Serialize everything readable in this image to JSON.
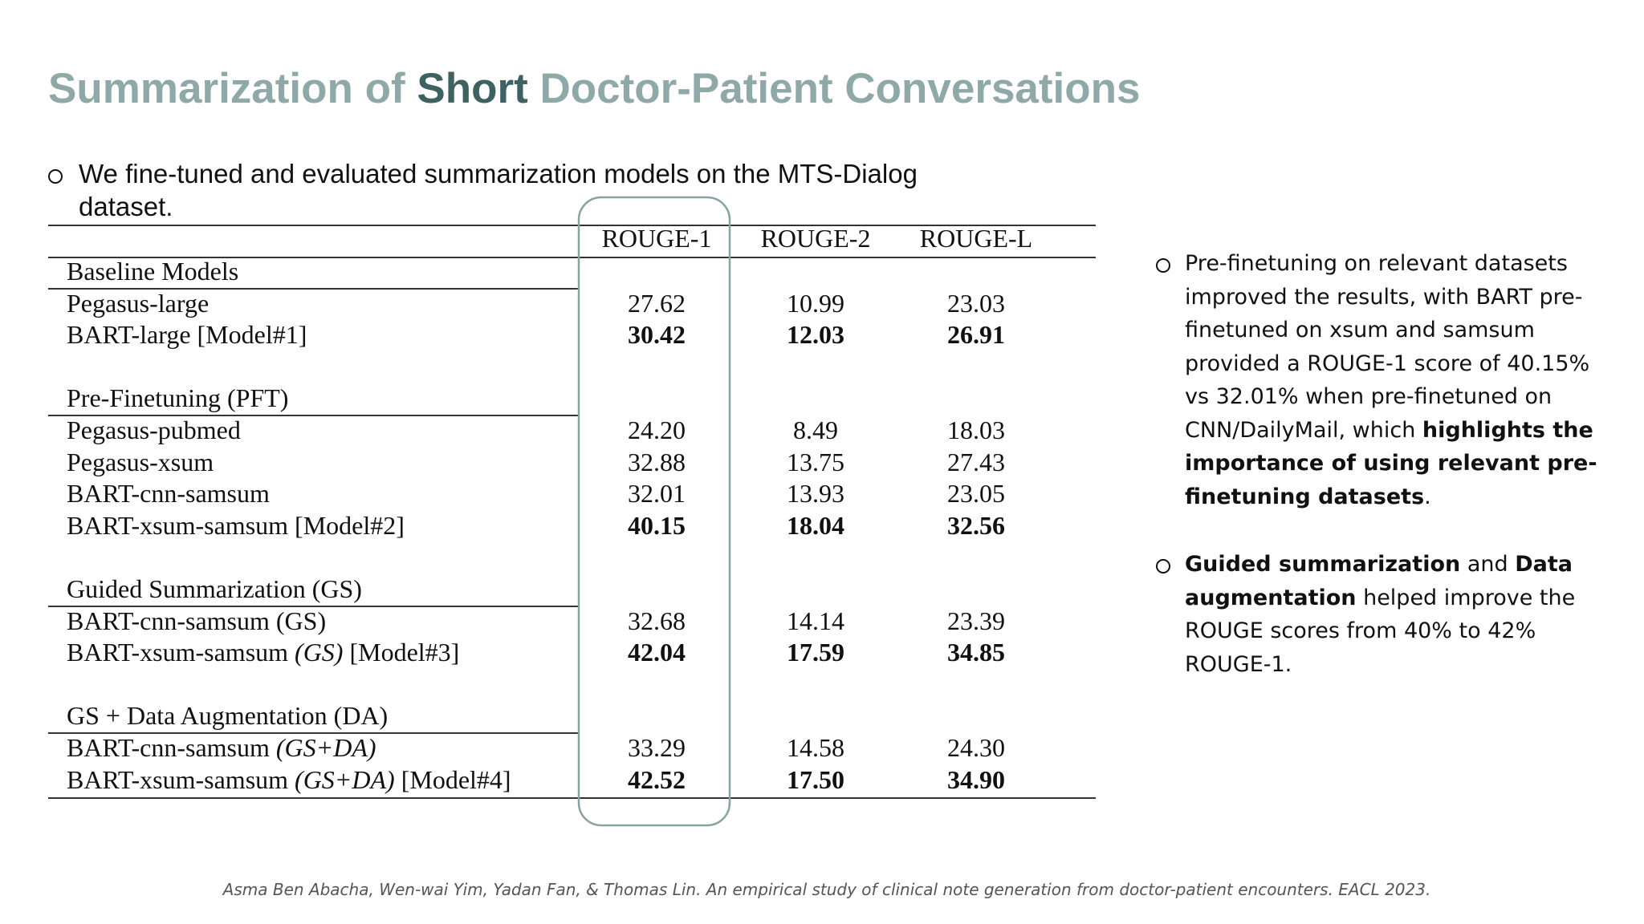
{
  "header": {
    "title": [
      {
        "text": "Summarization of "
      },
      {
        "text": "Short",
        "emphasis": true
      },
      {
        "text": " Doctor-Patient Conversations"
      }
    ]
  },
  "intro": "We fine-tuned and evaluated summarization models on the MTS-Dialog dataset.",
  "table": {
    "columns": [
      "ROUGE-1",
      "ROUGE-2",
      "ROUGE-L"
    ],
    "sections": [
      {
        "name": "Baseline Models",
        "rows": [
          {
            "model": [
              {
                "text": "Pegasus-large"
              }
            ],
            "values": [
              "27.62",
              "10.99",
              "23.03"
            ]
          },
          {
            "model": [
              {
                "text": "BART-large [Model#1]"
              }
            ],
            "values": [
              "30.42",
              "12.03",
              "26.91"
            ],
            "bold": true
          }
        ]
      },
      {
        "name": "Pre-Finetuning (PFT)",
        "rows": [
          {
            "model": [
              {
                "text": "Pegasus-pubmed"
              }
            ],
            "values": [
              "24.20",
              "8.49",
              "18.03"
            ]
          },
          {
            "model": [
              {
                "text": "Pegasus-xsum"
              }
            ],
            "values": [
              "32.88",
              "13.75",
              "27.43"
            ]
          },
          {
            "model": [
              {
                "text": "BART-cnn-samsum"
              }
            ],
            "values": [
              "32.01",
              "13.93",
              "23.05"
            ]
          },
          {
            "model": [
              {
                "text": "BART-xsum-samsum [Model#2]"
              }
            ],
            "values": [
              "40.15",
              "18.04",
              "32.56"
            ],
            "bold": true
          }
        ]
      },
      {
        "name": "Guided Summarization (GS)",
        "rows": [
          {
            "model": [
              {
                "text": "BART-cnn-samsum (GS)"
              }
            ],
            "values": [
              "32.68",
              "14.14",
              "23.39"
            ]
          },
          {
            "model": [
              {
                "text": "BART-xsum-samsum "
              },
              {
                "text": "(GS)",
                "italic": true
              },
              {
                "text": " [Model#3]"
              }
            ],
            "values": [
              "42.04",
              "17.59",
              "34.85"
            ],
            "bold": true
          }
        ]
      },
      {
        "name": "GS + Data Augmentation (DA)",
        "rows": [
          {
            "model": [
              {
                "text": "BART-cnn-samsum "
              },
              {
                "text": "(GS+DA)",
                "italic": true
              }
            ],
            "values": [
              "33.29",
              "14.58",
              "24.30"
            ]
          },
          {
            "model": [
              {
                "text": "BART-xsum-samsum "
              },
              {
                "text": "(GS+DA)",
                "italic": true
              },
              {
                "text": " [Model#4]"
              }
            ],
            "values": [
              "42.52",
              "17.50",
              "34.90"
            ],
            "bold": true
          }
        ]
      }
    ]
  },
  "findings": [
    [
      {
        "text": "Pre-finetuning on relevant datasets improved the results, with BART pre-finetuned on xsum and samsum provided a ROUGE-1 score of 40.15% vs 32.01% when pre-finetuned on CNN/DailyMail, which "
      },
      {
        "text": "highlights the importance of using relevant pre-finetuning datasets",
        "bold": true
      },
      {
        "text": "."
      }
    ],
    [
      {
        "text": "Guided summarization",
        "bold": true
      },
      {
        "text": " and "
      },
      {
        "text": "Data augmentation",
        "bold": true
      },
      {
        "text": " helped improve the ROUGE scores from 40% to 42% ROUGE-1."
      }
    ]
  ],
  "citation": "Asma Ben Abacha, Wen-wai Yim, Yadan Fan, & Thomas Lin. An empirical study of clinical note generation from doctor-patient encounters. EACL 2023."
}
